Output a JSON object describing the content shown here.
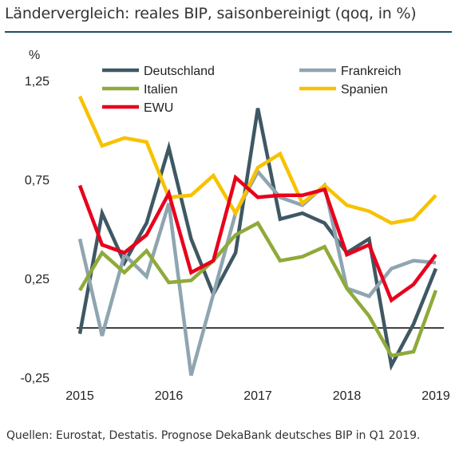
{
  "title": "Ländervergleich: reales BIP, saisonbereinigt (qoq, in %)",
  "source": "Quellen: Eurostat, Destatis. Prognose DekaBank deutsches BIP in Q1 2019.",
  "chart_data": {
    "type": "line",
    "ylabel": "%",
    "ylim": [
      -0.25,
      1.4
    ],
    "yticks": [
      1.25,
      0.75,
      0.25,
      -0.25
    ],
    "ytick_labels": [
      "1,25",
      "0,75",
      "0,25",
      "-0,25"
    ],
    "xtick_labels": [
      "2015",
      "2016",
      "2017",
      "2018",
      "2019"
    ],
    "x": [
      "2015Q1",
      "2015Q2",
      "2015Q3",
      "2015Q4",
      "2016Q1",
      "2016Q2",
      "2016Q3",
      "2016Q4",
      "2017Q1",
      "2017Q2",
      "2017Q3",
      "2017Q4",
      "2018Q1",
      "2018Q2",
      "2018Q3",
      "2018Q4",
      "2019Q1"
    ],
    "legend_position": "top",
    "series": [
      {
        "name": "Deutschland",
        "color": "#3e5864",
        "values": [
          -0.03,
          0.58,
          0.33,
          0.53,
          0.91,
          0.45,
          0.17,
          0.38,
          1.11,
          0.55,
          0.58,
          0.53,
          0.38,
          0.45,
          -0.19,
          0.02,
          0.3
        ]
      },
      {
        "name": "Frankreich",
        "color": "#8fa5b0",
        "values": [
          0.45,
          -0.04,
          0.37,
          0.26,
          0.63,
          -0.24,
          0.17,
          0.58,
          0.79,
          0.66,
          0.62,
          0.72,
          0.2,
          0.16,
          0.3,
          0.34,
          0.33
        ]
      },
      {
        "name": "Italien",
        "color": "#8faa3a",
        "values": [
          0.19,
          0.38,
          0.28,
          0.39,
          0.23,
          0.24,
          0.34,
          0.47,
          0.53,
          0.34,
          0.36,
          0.41,
          0.2,
          0.06,
          -0.14,
          -0.12,
          0.19
        ]
      },
      {
        "name": "Spanien",
        "color": "#f7c200",
        "values": [
          1.17,
          0.92,
          0.96,
          0.94,
          0.66,
          0.67,
          0.77,
          0.58,
          0.81,
          0.88,
          0.63,
          0.72,
          0.62,
          0.59,
          0.53,
          0.55,
          0.67
        ]
      },
      {
        "name": "EWU",
        "color": "#e8001c",
        "values": [
          0.72,
          0.42,
          0.38,
          0.47,
          0.68,
          0.28,
          0.34,
          0.76,
          0.66,
          0.67,
          0.67,
          0.7,
          0.37,
          0.42,
          0.14,
          0.22,
          0.37
        ]
      }
    ]
  }
}
